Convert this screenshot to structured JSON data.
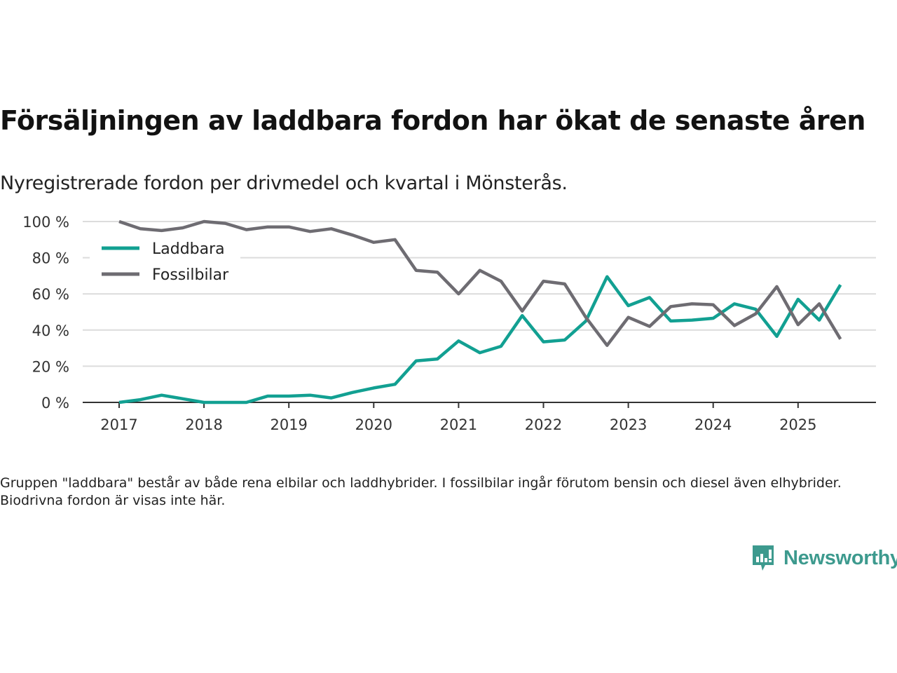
{
  "title": "Försäljningen av laddbara fordon har ökat de senaste åren",
  "subtitle": "Nyregistrerade fordon per drivmedel och kvartal i Mönsterås.",
  "footnote": "Gruppen \"laddbara\" består av både rena elbilar och laddhybrider. I fossilbilar ingår förutom bensin och diesel även elhybrider. Biodrivna fordon är visas inte här.",
  "brand": {
    "name": "Newsworthy",
    "icon": "newsworthy-logo-icon",
    "color": "#3d9a8e"
  },
  "chart_data": {
    "type": "line",
    "title": "Försäljningen av laddbara fordon har ökat de senaste åren",
    "subtitle": "Nyregistrerade fordon per drivmedel och kvartal i Mönsterås.",
    "xlabel": "",
    "ylabel": "",
    "x_unit": "quarter",
    "x": [
      "2017-Q1",
      "2017-Q2",
      "2017-Q3",
      "2017-Q4",
      "2018-Q1",
      "2018-Q2",
      "2018-Q3",
      "2018-Q4",
      "2019-Q1",
      "2019-Q2",
      "2019-Q3",
      "2019-Q4",
      "2020-Q1",
      "2020-Q2",
      "2020-Q3",
      "2020-Q4",
      "2021-Q1",
      "2021-Q2",
      "2021-Q3",
      "2021-Q4",
      "2022-Q1",
      "2022-Q2",
      "2022-Q3",
      "2022-Q4",
      "2023-Q1",
      "2023-Q2",
      "2023-Q3",
      "2023-Q4",
      "2024-Q1",
      "2024-Q2",
      "2024-Q3",
      "2024-Q4",
      "2025-Q1",
      "2025-Q2",
      "2025-Q3"
    ],
    "x_ticks": [
      "2017",
      "2018",
      "2019",
      "2020",
      "2021",
      "2022",
      "2023",
      "2024",
      "2025"
    ],
    "x_range": [
      2016.6,
      2026.0
    ],
    "ylim": [
      0,
      100
    ],
    "y_ticks": [
      0,
      20,
      40,
      60,
      80,
      100
    ],
    "y_tick_labels": [
      "0 %",
      "20 %",
      "40 %",
      "60 %",
      "80 %",
      "100 %"
    ],
    "grid": true,
    "legend_position": "top-left",
    "series": [
      {
        "name": "Laddbara",
        "color": "#12a092",
        "values": [
          0,
          1.5,
          4,
          2,
          0,
          0,
          0,
          3.5,
          3.5,
          4,
          2.5,
          5.5,
          8,
          10,
          23,
          24,
          34,
          27.5,
          31,
          48,
          33.5,
          34.5,
          45,
          69.5,
          53.5,
          58,
          45,
          45.5,
          46.5,
          54.5,
          51.5,
          36.5,
          57,
          45.5,
          65
        ]
      },
      {
        "name": "Fossilbilar",
        "color": "#6e6c72",
        "values": [
          100,
          96,
          95,
          96.5,
          100,
          99,
          95.5,
          97,
          97,
          94.5,
          96,
          92.5,
          88.5,
          90,
          73,
          72,
          60,
          73,
          67,
          50.5,
          67,
          65.5,
          47,
          31.5,
          47,
          42,
          53,
          54.5,
          54,
          42.5,
          49,
          64,
          43,
          54.5,
          35
        ]
      }
    ]
  }
}
